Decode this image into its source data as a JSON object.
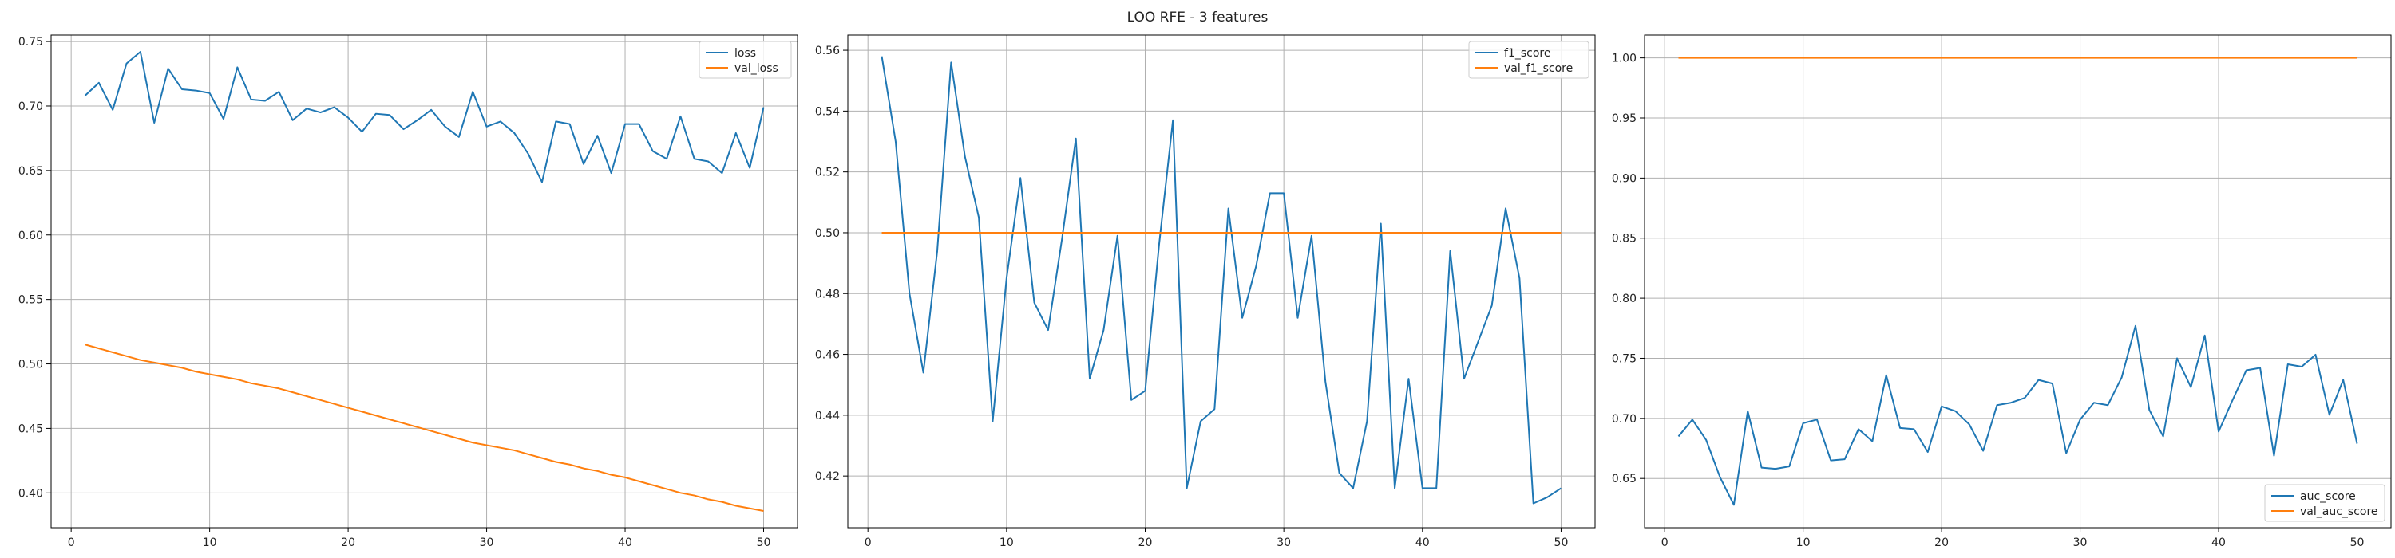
{
  "figure": {
    "title": "LOO RFE - 3 features"
  },
  "colors": {
    "series1": "#1f77b4",
    "series2": "#ff7f0e",
    "grid": "#b0b0b0",
    "axis": "#000000"
  },
  "chart_data": [
    {
      "type": "line",
      "title": "",
      "xlabel": "",
      "ylabel": "",
      "grid": true,
      "legend_position": "top-right",
      "xlim": [
        -1.45,
        52.45
      ],
      "ylim": [
        0.373,
        0.755
      ],
      "xticks": [
        0,
        10,
        20,
        30,
        40,
        50
      ],
      "yticks": [
        0.4,
        0.45,
        0.5,
        0.55,
        0.6,
        0.65,
        0.7,
        0.75
      ],
      "ytick_decimals": 2,
      "x": [
        1,
        2,
        3,
        4,
        5,
        6,
        7,
        8,
        9,
        10,
        11,
        12,
        13,
        14,
        15,
        16,
        17,
        18,
        19,
        20,
        21,
        22,
        23,
        24,
        25,
        26,
        27,
        28,
        29,
        30,
        31,
        32,
        33,
        34,
        35,
        36,
        37,
        38,
        39,
        40,
        41,
        42,
        43,
        44,
        45,
        46,
        47,
        48,
        49,
        50
      ],
      "series": [
        {
          "name": "loss",
          "values": [
            0.708,
            0.718,
            0.697,
            0.733,
            0.742,
            0.687,
            0.729,
            0.713,
            0.712,
            0.71,
            0.69,
            0.73,
            0.705,
            0.704,
            0.711,
            0.689,
            0.698,
            0.695,
            0.699,
            0.691,
            0.68,
            0.694,
            0.693,
            0.682,
            0.689,
            0.697,
            0.684,
            0.676,
            0.711,
            0.684,
            0.688,
            0.679,
            0.663,
            0.641,
            0.688,
            0.686,
            0.655,
            0.677,
            0.648,
            0.686,
            0.686,
            0.665,
            0.659,
            0.692,
            0.659,
            0.657,
            0.648,
            0.679,
            0.652,
            0.699
          ]
        },
        {
          "name": "val_loss",
          "values": [
            0.515,
            0.512,
            0.509,
            0.506,
            0.503,
            0.501,
            0.499,
            0.497,
            0.494,
            0.492,
            0.49,
            0.488,
            0.485,
            0.483,
            0.481,
            0.478,
            0.475,
            0.472,
            0.469,
            0.466,
            0.463,
            0.46,
            0.457,
            0.454,
            0.451,
            0.448,
            0.445,
            0.442,
            0.439,
            0.437,
            0.435,
            0.433,
            0.43,
            0.427,
            0.424,
            0.422,
            0.419,
            0.417,
            0.414,
            0.412,
            0.409,
            0.406,
            0.403,
            0.4,
            0.398,
            0.395,
            0.393,
            0.39,
            0.388,
            0.386
          ]
        }
      ]
    },
    {
      "type": "line",
      "title": "",
      "xlabel": "",
      "ylabel": "",
      "grid": true,
      "legend_position": "top-right",
      "xlim": [
        -1.45,
        52.45
      ],
      "ylim": [
        0.403,
        0.565
      ],
      "xticks": [
        0,
        10,
        20,
        30,
        40,
        50
      ],
      "yticks": [
        0.42,
        0.44,
        0.46,
        0.48,
        0.5,
        0.52,
        0.54,
        0.56
      ],
      "ytick_decimals": 2,
      "x": [
        1,
        2,
        3,
        4,
        5,
        6,
        7,
        8,
        9,
        10,
        11,
        12,
        13,
        14,
        15,
        16,
        17,
        18,
        19,
        20,
        21,
        22,
        23,
        24,
        25,
        26,
        27,
        28,
        29,
        30,
        31,
        32,
        33,
        34,
        35,
        36,
        37,
        38,
        39,
        40,
        41,
        42,
        43,
        44,
        45,
        46,
        47,
        48,
        49,
        50
      ],
      "series": [
        {
          "name": "f1_score",
          "values": [
            0.558,
            0.53,
            0.48,
            0.454,
            0.494,
            0.556,
            0.525,
            0.505,
            0.438,
            0.485,
            0.518,
            0.477,
            0.468,
            0.498,
            0.531,
            0.452,
            0.468,
            0.499,
            0.445,
            0.448,
            0.496,
            0.537,
            0.416,
            0.438,
            0.442,
            0.508,
            0.472,
            0.489,
            0.513,
            0.513,
            0.472,
            0.499,
            0.451,
            0.421,
            0.416,
            0.438,
            0.503,
            0.416,
            0.452,
            0.416,
            0.416,
            0.494,
            0.452,
            0.464,
            0.476,
            0.508,
            0.485,
            0.411,
            0.413,
            0.416
          ]
        },
        {
          "name": "val_f1_score",
          "values": [
            0.5,
            0.5,
            0.5,
            0.5,
            0.5,
            0.5,
            0.5,
            0.5,
            0.5,
            0.5,
            0.5,
            0.5,
            0.5,
            0.5,
            0.5,
            0.5,
            0.5,
            0.5,
            0.5,
            0.5,
            0.5,
            0.5,
            0.5,
            0.5,
            0.5,
            0.5,
            0.5,
            0.5,
            0.5,
            0.5,
            0.5,
            0.5,
            0.5,
            0.5,
            0.5,
            0.5,
            0.5,
            0.5,
            0.5,
            0.5,
            0.5,
            0.5,
            0.5,
            0.5,
            0.5,
            0.5,
            0.5,
            0.5,
            0.5,
            0.5
          ]
        }
      ]
    },
    {
      "type": "line",
      "title": "",
      "xlabel": "",
      "ylabel": "",
      "grid": true,
      "legend_position": "bottom-right",
      "xlim": [
        -1.45,
        52.45
      ],
      "ylim": [
        0.609,
        1.019
      ],
      "xticks": [
        0,
        10,
        20,
        30,
        40,
        50
      ],
      "yticks": [
        0.65,
        0.7,
        0.75,
        0.8,
        0.85,
        0.9,
        0.95,
        1.0
      ],
      "ytick_decimals": 2,
      "x": [
        1,
        2,
        3,
        4,
        5,
        6,
        7,
        8,
        9,
        10,
        11,
        12,
        13,
        14,
        15,
        16,
        17,
        18,
        19,
        20,
        21,
        22,
        23,
        24,
        25,
        26,
        27,
        28,
        29,
        30,
        31,
        32,
        33,
        34,
        35,
        36,
        37,
        38,
        39,
        40,
        41,
        42,
        43,
        44,
        45,
        46,
        47,
        48,
        49,
        50
      ],
      "series": [
        {
          "name": "auc_score",
          "values": [
            0.685,
            0.699,
            0.682,
            0.651,
            0.628,
            0.706,
            0.659,
            0.658,
            0.66,
            0.696,
            0.699,
            0.665,
            0.666,
            0.691,
            0.681,
            0.736,
            0.692,
            0.691,
            0.672,
            0.71,
            0.706,
            0.695,
            0.673,
            0.711,
            0.713,
            0.717,
            0.732,
            0.729,
            0.671,
            0.699,
            0.713,
            0.711,
            0.734,
            0.777,
            0.707,
            0.685,
            0.75,
            0.726,
            0.769,
            0.689,
            0.715,
            0.74,
            0.742,
            0.669,
            0.745,
            0.743,
            0.753,
            0.703,
            0.732,
            0.679
          ]
        },
        {
          "name": "val_auc_score",
          "values": [
            1,
            1,
            1,
            1,
            1,
            1,
            1,
            1,
            1,
            1,
            1,
            1,
            1,
            1,
            1,
            1,
            1,
            1,
            1,
            1,
            1,
            1,
            1,
            1,
            1,
            1,
            1,
            1,
            1,
            1,
            1,
            1,
            1,
            1,
            1,
            1,
            1,
            1,
            1,
            1,
            1,
            1,
            1,
            1,
            1,
            1,
            1,
            1,
            1,
            1
          ]
        }
      ]
    }
  ]
}
